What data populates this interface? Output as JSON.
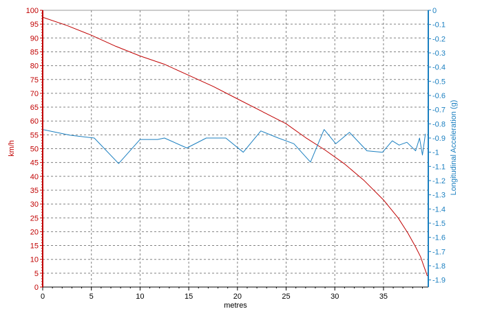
{
  "chart_data": {
    "type": "line",
    "title": "",
    "xlabel": "metres",
    "ylabel_left": "km/h",
    "ylabel_right": "Longitudinal Acceleration (g)",
    "xlim": [
      0,
      39.6
    ],
    "ylim_left": [
      0,
      100
    ],
    "ylim_right": [
      -1.95,
      0
    ],
    "x_ticks": [
      0,
      5,
      10,
      15,
      20,
      25,
      30,
      35
    ],
    "y_left_ticks": [
      0,
      5,
      10,
      15,
      20,
      25,
      30,
      35,
      40,
      45,
      50,
      55,
      60,
      65,
      70,
      75,
      80,
      85,
      90,
      95,
      100
    ],
    "y_right_ticks": [
      0,
      -0.1,
      -0.2,
      -0.3,
      -0.4,
      -0.5,
      -0.6,
      -0.7,
      -0.8,
      -0.9,
      -1,
      -1.1,
      -1.2,
      -1.3,
      -1.4,
      -1.5,
      -1.6,
      -1.7,
      -1.8,
      -1.9
    ],
    "grid": true,
    "colors": {
      "speed": "#c00000",
      "accel": "#1a7fc0",
      "grid": "#808080",
      "axis": "#000000"
    },
    "series": [
      {
        "axis": "left",
        "x": [
          0,
          2.5,
          5,
          7.5,
          10,
          12.5,
          15,
          17.5,
          20,
          22.5,
          25,
          27,
          29,
          31,
          33,
          35,
          36.5,
          37.5,
          38.3,
          38.8,
          39.1,
          39.3,
          39.5
        ],
        "values": [
          97.5,
          94.5,
          91,
          87,
          83.5,
          80.5,
          76.5,
          72.5,
          68,
          63.5,
          59,
          54,
          49.5,
          44.5,
          38.5,
          31.5,
          25,
          19.5,
          14.5,
          11,
          8,
          6,
          4
        ]
      },
      {
        "axis": "right",
        "x": [
          0,
          2.8,
          5.3,
          7.8,
          10,
          11.8,
          12.5,
          14.8,
          16.8,
          18.8,
          20.6,
          22.4,
          24.2,
          25.8,
          27.5,
          28.9,
          30.1,
          31.5,
          33.3,
          34.9,
          35.9,
          36.6,
          37.4,
          38.3,
          38.7,
          39.0,
          39.3
        ],
        "values": [
          -0.84,
          -0.88,
          -0.9,
          -1.08,
          -0.91,
          -0.91,
          -0.9,
          -0.97,
          -0.9,
          -0.9,
          -1.0,
          -0.85,
          -0.9,
          -0.94,
          -1.07,
          -0.84,
          -0.94,
          -0.86,
          -0.99,
          -1.0,
          -0.92,
          -0.95,
          -0.93,
          -0.99,
          -0.9,
          -1.02,
          -0.87
        ]
      }
    ]
  }
}
